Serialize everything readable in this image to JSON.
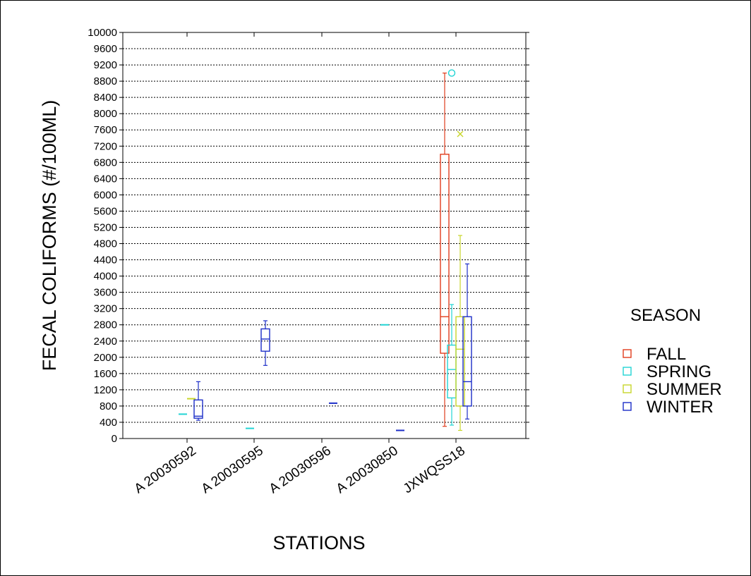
{
  "chart_data": {
    "type": "box",
    "xlabel": "STATIONS",
    "ylabel": "FECAL COLIFORMS (#/100ML)",
    "ylim": [
      0,
      10000
    ],
    "yticks": [
      0,
      400,
      800,
      1200,
      1600,
      2000,
      2400,
      2800,
      3200,
      3600,
      4000,
      4400,
      4800,
      5200,
      5600,
      6000,
      6400,
      6800,
      7200,
      7600,
      8000,
      8400,
      8800,
      9200,
      9600,
      10000
    ],
    "grid": true,
    "categories": [
      "A 20030592",
      "A 20030595",
      "A 20030596",
      "A 20030850",
      "JXWQSS18"
    ],
    "legend": {
      "title": "SEASON",
      "placement": "right",
      "entries": [
        "FALL",
        "SPRING",
        "SUMMER",
        "WINTER"
      ]
    },
    "series": [
      {
        "name": "FALL",
        "color": "#e03c1c",
        "boxes": [
          {
            "category": "JXWQSS18",
            "min": 300,
            "q1": 2100,
            "median": 3000,
            "q3": 7000,
            "max": 9000
          }
        ]
      },
      {
        "name": "SPRING",
        "color": "#22d4d4",
        "boxes": [
          {
            "category": "A 20030592",
            "min": 600,
            "q1": 600,
            "median": 600,
            "q3": 600,
            "max": 600
          },
          {
            "category": "A 20030595",
            "min": 250,
            "q1": 250,
            "median": 250,
            "q3": 250,
            "max": 250
          },
          {
            "category": "A 20030850",
            "min": 2800,
            "q1": 2800,
            "median": 2800,
            "q3": 2800,
            "max": 2800
          },
          {
            "category": "JXWQSS18",
            "min": 330,
            "q1": 1000,
            "median": 1700,
            "q3": 2300,
            "max": 3300
          }
        ],
        "outliers": [
          {
            "category": "JXWQSS18",
            "value": 9000,
            "marker": "circle"
          }
        ]
      },
      {
        "name": "SUMMER",
        "color": "#c8d62a",
        "boxes": [
          {
            "category": "A 20030592",
            "min": 980,
            "q1": 980,
            "median": 980,
            "q3": 980,
            "max": 980
          },
          {
            "category": "JXWQSS18",
            "min": 200,
            "q1": 800,
            "median": 2200,
            "q3": 3000,
            "max": 5000
          }
        ],
        "outliers": [
          {
            "category": "JXWQSS18",
            "value": 7500,
            "marker": "x"
          }
        ]
      },
      {
        "name": "WINTER",
        "color": "#1c2ec8",
        "boxes": [
          {
            "category": "A 20030592",
            "min": 450,
            "q1": 500,
            "median": 550,
            "q3": 950,
            "max": 1400
          },
          {
            "category": "A 20030595",
            "min": 1800,
            "q1": 2150,
            "median": 2450,
            "q3": 2700,
            "max": 2900
          },
          {
            "category": "A 20030596",
            "min": 870,
            "q1": 870,
            "median": 870,
            "q3": 870,
            "max": 870
          },
          {
            "category": "A 20030850",
            "min": 200,
            "q1": 200,
            "median": 200,
            "q3": 200,
            "max": 200
          },
          {
            "category": "JXWQSS18",
            "min": 480,
            "q1": 800,
            "median": 1400,
            "q3": 3000,
            "max": 4300
          }
        ]
      }
    ]
  }
}
